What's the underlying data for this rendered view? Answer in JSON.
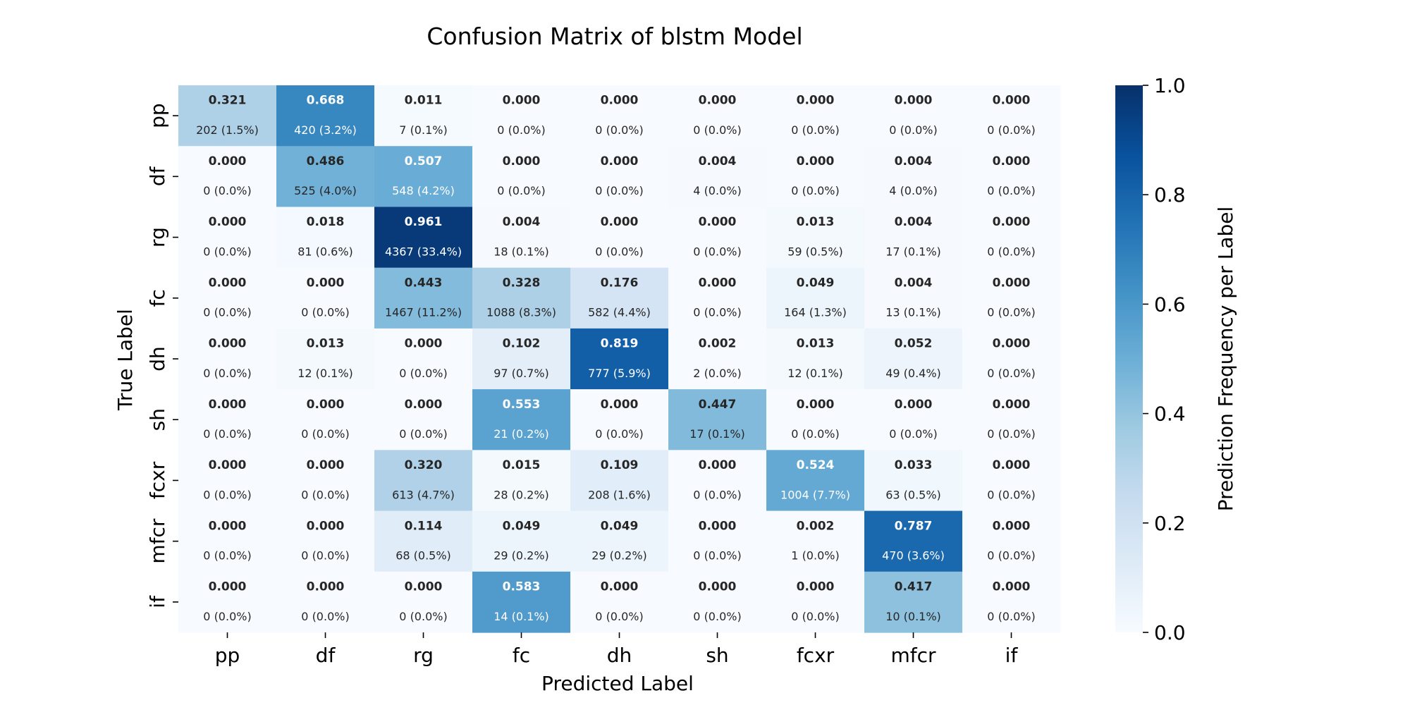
{
  "chart_data": {
    "type": "heatmap",
    "title": "Confusion Matrix of blstm Model",
    "xlabel": "Predicted Label",
    "ylabel": "True Label",
    "x_categories": [
      "pp",
      "df",
      "rg",
      "fc",
      "dh",
      "sh",
      "fcxr",
      "mfcr",
      "if"
    ],
    "y_categories": [
      "pp",
      "df",
      "rg",
      "fc",
      "dh",
      "sh",
      "fcxr",
      "mfcr",
      "if"
    ],
    "values": [
      [
        0.321,
        0.668,
        0.011,
        0.0,
        0.0,
        0.0,
        0.0,
        0.0,
        0.0
      ],
      [
        0.0,
        0.486,
        0.507,
        0.0,
        0.0,
        0.004,
        0.0,
        0.004,
        0.0
      ],
      [
        0.0,
        0.018,
        0.961,
        0.004,
        0.0,
        0.0,
        0.013,
        0.004,
        0.0
      ],
      [
        0.0,
        0.0,
        0.443,
        0.328,
        0.176,
        0.0,
        0.049,
        0.004,
        0.0
      ],
      [
        0.0,
        0.013,
        0.0,
        0.102,
        0.819,
        0.002,
        0.013,
        0.052,
        0.0
      ],
      [
        0.0,
        0.0,
        0.0,
        0.553,
        0.0,
        0.447,
        0.0,
        0.0,
        0.0
      ],
      [
        0.0,
        0.0,
        0.32,
        0.015,
        0.109,
        0.0,
        0.524,
        0.033,
        0.0
      ],
      [
        0.0,
        0.0,
        0.114,
        0.049,
        0.049,
        0.0,
        0.002,
        0.787,
        0.0
      ],
      [
        0.0,
        0.0,
        0.0,
        0.583,
        0.0,
        0.0,
        0.0,
        0.417,
        0.0
      ]
    ],
    "counts": [
      [
        "202 (1.5%)",
        "420 (3.2%)",
        "7 (0.1%)",
        "0 (0.0%)",
        "0 (0.0%)",
        "0 (0.0%)",
        "0 (0.0%)",
        "0 (0.0%)",
        "0 (0.0%)"
      ],
      [
        "0 (0.0%)",
        "525 (4.0%)",
        "548 (4.2%)",
        "0 (0.0%)",
        "0 (0.0%)",
        "4 (0.0%)",
        "0 (0.0%)",
        "4 (0.0%)",
        "0 (0.0%)"
      ],
      [
        "0 (0.0%)",
        "81 (0.6%)",
        "4367 (33.4%)",
        "18 (0.1%)",
        "0 (0.0%)",
        "0 (0.0%)",
        "59 (0.5%)",
        "17 (0.1%)",
        "0 (0.0%)"
      ],
      [
        "0 (0.0%)",
        "0 (0.0%)",
        "1467 (11.2%)",
        "1088 (8.3%)",
        "582 (4.4%)",
        "0 (0.0%)",
        "164 (1.3%)",
        "13 (0.1%)",
        "0 (0.0%)"
      ],
      [
        "0 (0.0%)",
        "12 (0.1%)",
        "0 (0.0%)",
        "97 (0.7%)",
        "777 (5.9%)",
        "2 (0.0%)",
        "12 (0.1%)",
        "49 (0.4%)",
        "0 (0.0%)"
      ],
      [
        "0 (0.0%)",
        "0 (0.0%)",
        "0 (0.0%)",
        "21 (0.2%)",
        "0 (0.0%)",
        "17 (0.1%)",
        "0 (0.0%)",
        "0 (0.0%)",
        "0 (0.0%)"
      ],
      [
        "0 (0.0%)",
        "0 (0.0%)",
        "613 (4.7%)",
        "28 (0.2%)",
        "208 (1.6%)",
        "0 (0.0%)",
        "1004 (7.7%)",
        "63 (0.5%)",
        "0 (0.0%)"
      ],
      [
        "0 (0.0%)",
        "0 (0.0%)",
        "68 (0.5%)",
        "29 (0.2%)",
        "29 (0.2%)",
        "0 (0.0%)",
        "1 (0.0%)",
        "470 (3.6%)",
        "0 (0.0%)"
      ],
      [
        "0 (0.0%)",
        "0 (0.0%)",
        "0 (0.0%)",
        "14 (0.1%)",
        "0 (0.0%)",
        "0 (0.0%)",
        "0 (0.0%)",
        "10 (0.1%)",
        "0 (0.0%)"
      ]
    ],
    "colorbar": {
      "label": "Prediction Frequency per Label",
      "range": [
        0,
        1
      ],
      "ticks": [
        0.0,
        0.2,
        0.4,
        0.6,
        0.8,
        1.0
      ],
      "tick_labels": [
        "0.0",
        "0.2",
        "0.4",
        "0.6",
        "0.8",
        "1.0"
      ],
      "colormap": "Blues",
      "colors": [
        "#f7fbff",
        "#deebf7",
        "#c6dbef",
        "#9ecae1",
        "#6baed6",
        "#4292c6",
        "#2171b5",
        "#08519c",
        "#08306b"
      ]
    },
    "legend": "none",
    "grid": false
  }
}
